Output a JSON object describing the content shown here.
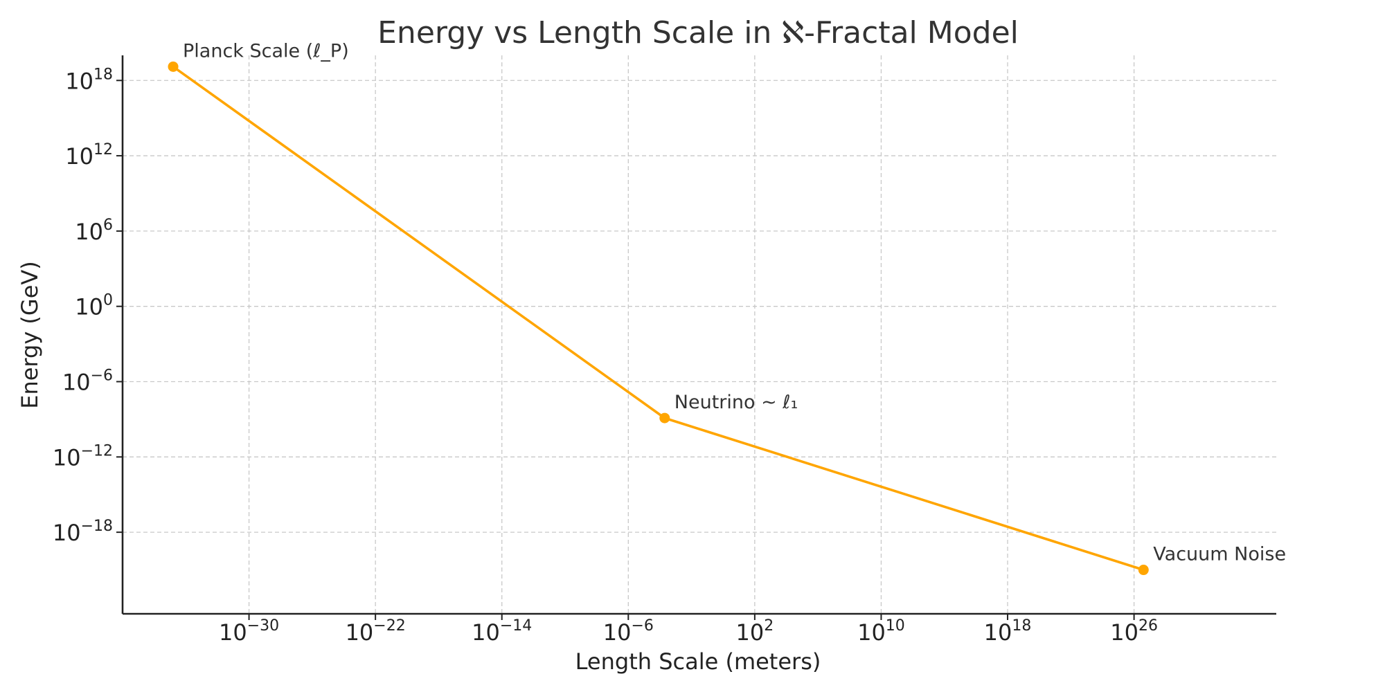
{
  "chart_data": {
    "type": "line",
    "title": "Energy vs Length Scale in ℵ-Fractal Model",
    "xlabel": "Length Scale (meters)",
    "ylabel": "Energy (GeV)",
    "xscale": "log",
    "yscale": "log",
    "xlim_log10": [
      -38,
      35
    ],
    "ylim_log10": [
      -24.5,
      20
    ],
    "xticks": [
      {
        "base": "10",
        "exp": "−30",
        "log10": -30
      },
      {
        "base": "10",
        "exp": "−22",
        "log10": -22
      },
      {
        "base": "10",
        "exp": "−14",
        "log10": -14
      },
      {
        "base": "10",
        "exp": "−6",
        "log10": -6
      },
      {
        "base": "10",
        "exp": "2",
        "log10": 2
      },
      {
        "base": "10",
        "exp": "10",
        "log10": 10
      },
      {
        "base": "10",
        "exp": "18",
        "log10": 18
      },
      {
        "base": "10",
        "exp": "26",
        "log10": 26
      }
    ],
    "yticks": [
      {
        "base": "10",
        "exp": "18",
        "log10": 18
      },
      {
        "base": "10",
        "exp": "12",
        "log10": 12
      },
      {
        "base": "10",
        "exp": "6",
        "log10": 6
      },
      {
        "base": "10",
        "exp": "0",
        "log10": 0
      },
      {
        "base": "10",
        "exp": "−6",
        "log10": -6
      },
      {
        "base": "10",
        "exp": "−12",
        "log10": -12
      },
      {
        "base": "10",
        "exp": "−18",
        "log10": -18
      }
    ],
    "grid": true,
    "series": [
      {
        "color": "#FFA500",
        "points": [
          {
            "x_log10": -34.8,
            "y_log10": 19.1,
            "label": "Planck Scale (ℓ_P)"
          },
          {
            "x_log10": -3.7,
            "y_log10": -8.9,
            "label": "Neutrino ~ ℓ₁"
          },
          {
            "x_log10": 26.6,
            "y_log10": -21.0,
            "label": "Vacuum Noise"
          }
        ]
      }
    ]
  }
}
